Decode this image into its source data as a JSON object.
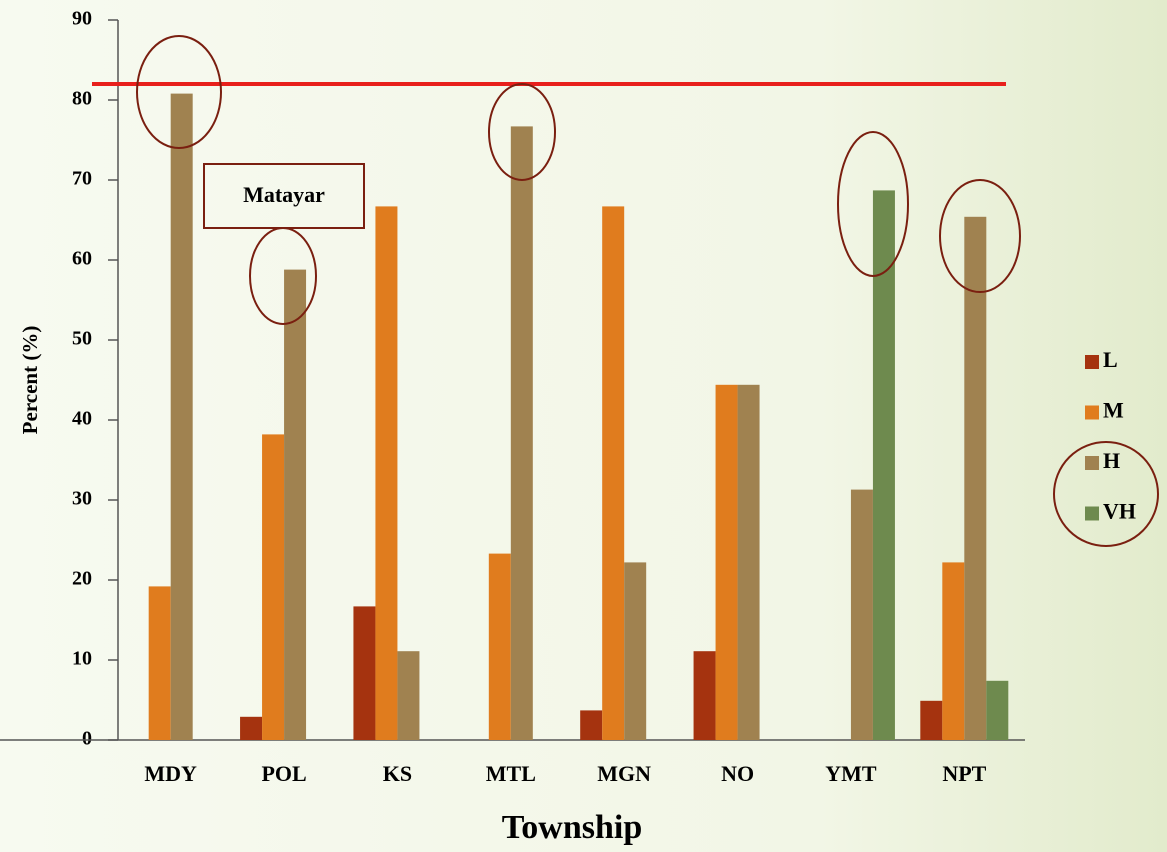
{
  "chart_data": {
    "type": "bar",
    "categories": [
      "MDY",
      "POL",
      "KS",
      "MTL",
      "MGN",
      "NO",
      "YMT",
      "NPT"
    ],
    "series": [
      {
        "name": "L",
        "color": "#a5330f",
        "values": [
          0,
          2.9,
          16.7,
          0,
          3.7,
          11.1,
          0,
          4.9
        ]
      },
      {
        "name": "M",
        "color": "#e07c1e",
        "values": [
          19.2,
          38.2,
          66.7,
          23.3,
          66.7,
          44.4,
          0,
          22.2
        ]
      },
      {
        "name": "H",
        "color": "#a08250",
        "values": [
          80.8,
          58.8,
          11.1,
          76.7,
          22.2,
          44.4,
          31.3,
          65.4
        ]
      },
      {
        "name": "VH",
        "color": "#6e8a4e",
        "values": [
          0,
          0,
          0,
          0,
          0,
          0,
          68.7,
          7.4
        ]
      }
    ],
    "ylim": [
      0,
      90
    ],
    "yticks": [
      0,
      10,
      20,
      30,
      40,
      50,
      60,
      70,
      80,
      90
    ],
    "y_label": "Percent (%)",
    "x_label": "Township",
    "reference_line": 82,
    "reference_color": "#e8201c",
    "annotation": "Matayar",
    "legend": "right"
  }
}
